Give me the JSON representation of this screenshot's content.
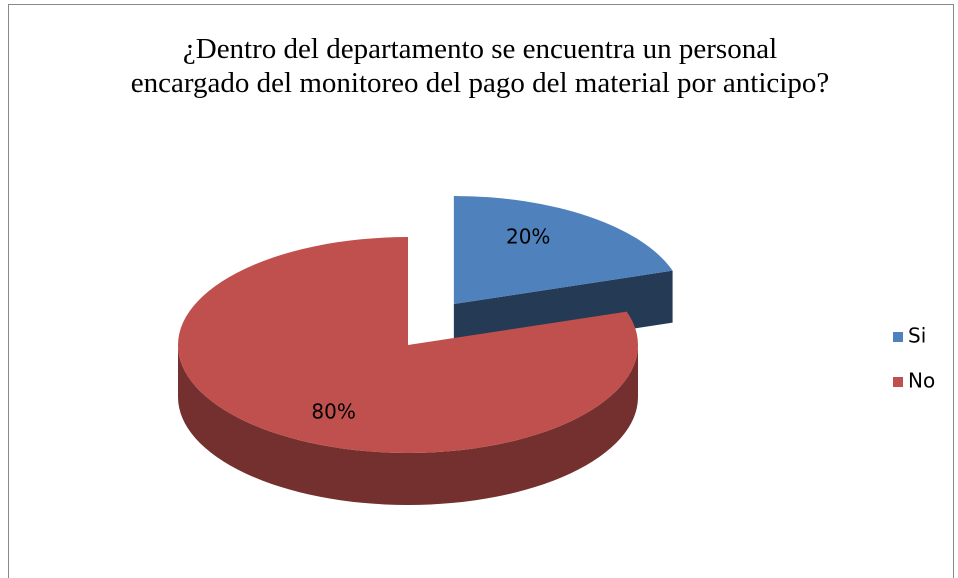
{
  "chart_data": {
    "type": "pie",
    "title": "¿Dentro del departamento se encuentra un personal encargado del monitoreo del pago del material por anticipo?",
    "categories": [
      "Si",
      "No"
    ],
    "values": [
      20,
      80
    ],
    "value_labels": [
      "20%",
      "80%"
    ],
    "colors": [
      "#4f81bd",
      "#c0504d"
    ],
    "legend": "right"
  }
}
